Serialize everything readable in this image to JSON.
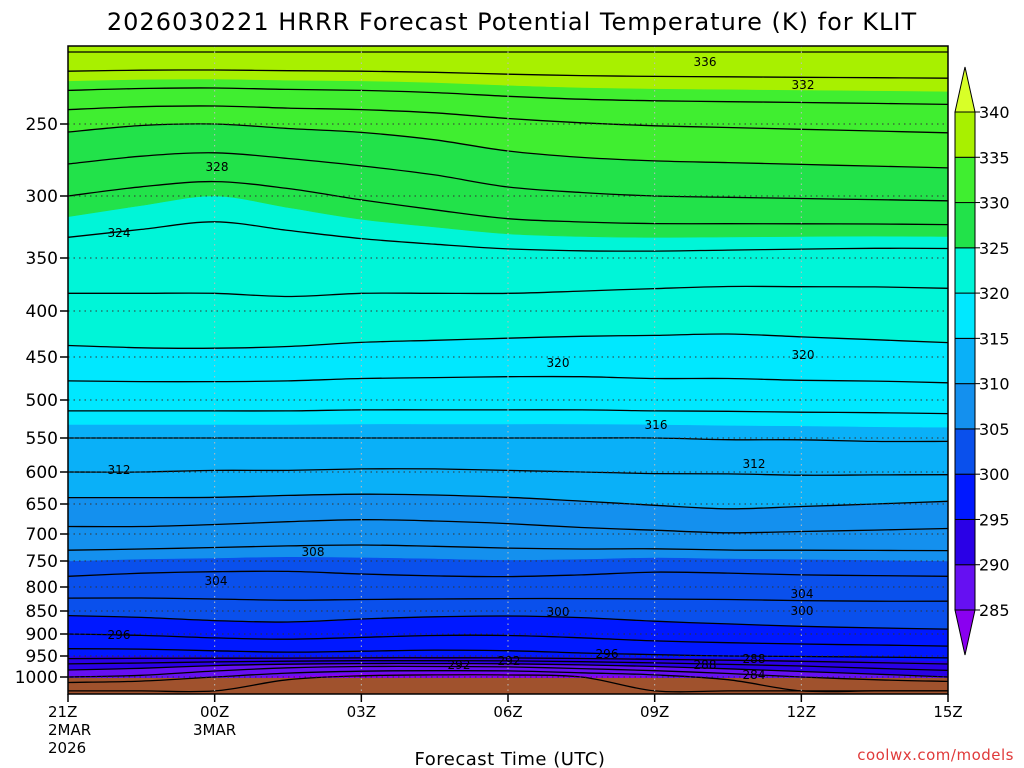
{
  "chart_data": {
    "type": "heatmap",
    "title": "2026030221 HRRR Forecast Potential Temperature (K) for KLIT",
    "xlabel": "Forecast Time (UTC)",
    "ylabel": "",
    "credit": "coolwx.com/models",
    "y_axis": {
      "scale": "pressure (hPa), log-like, inverted",
      "ticks": [
        "250",
        "300",
        "350",
        "400",
        "450",
        "500",
        "550",
        "600",
        "650",
        "700",
        "750",
        "800",
        "850",
        "900",
        "950",
        "1000"
      ],
      "grid": "dotted"
    },
    "x_axis": {
      "ticks": [
        {
          "line1": "21Z",
          "line2": "2MAR",
          "line3": "2026"
        },
        {
          "line1": "00Z",
          "line2": "3MAR",
          "line3": ""
        },
        {
          "line1": "03Z",
          "line2": "",
          "line3": ""
        },
        {
          "line1": "06Z",
          "line2": "",
          "line3": ""
        },
        {
          "line1": "09Z",
          "line2": "",
          "line3": ""
        },
        {
          "line1": "12Z",
          "line2": "",
          "line3": ""
        },
        {
          "line1": "15Z",
          "line2": "",
          "line3": ""
        }
      ],
      "grid": "dotted"
    },
    "colorbar": {
      "levels": [
        "285",
        "290",
        "295",
        "300",
        "305",
        "310",
        "315",
        "320",
        "325",
        "330",
        "335",
        "340"
      ],
      "colors": [
        "#8a00f0",
        "#6610f2",
        "#2a00e6",
        "#0018ff",
        "#0a50ec",
        "#1490ee",
        "#0ab0f8",
        "#00e8ff",
        "#00f5d8",
        "#22e24a",
        "#40ee30",
        "#a8f000",
        "#d8ff28"
      ]
    },
    "contour_labels": [
      "336",
      "332",
      "328",
      "324",
      "320",
      "320",
      "316",
      "312",
      "312",
      "308",
      "304",
      "304",
      "300",
      "300",
      "296",
      "296",
      "292",
      "292",
      "288",
      "288",
      "284"
    ],
    "contour_levels_K": [
      284,
      286,
      288,
      290,
      292,
      294,
      296,
      298,
      300,
      302,
      304,
      306,
      308,
      310,
      312,
      314,
      316,
      318,
      320,
      322,
      324,
      326,
      328,
      330,
      332,
      334,
      336,
      338
    ],
    "ground_color": "#a0522d"
  }
}
